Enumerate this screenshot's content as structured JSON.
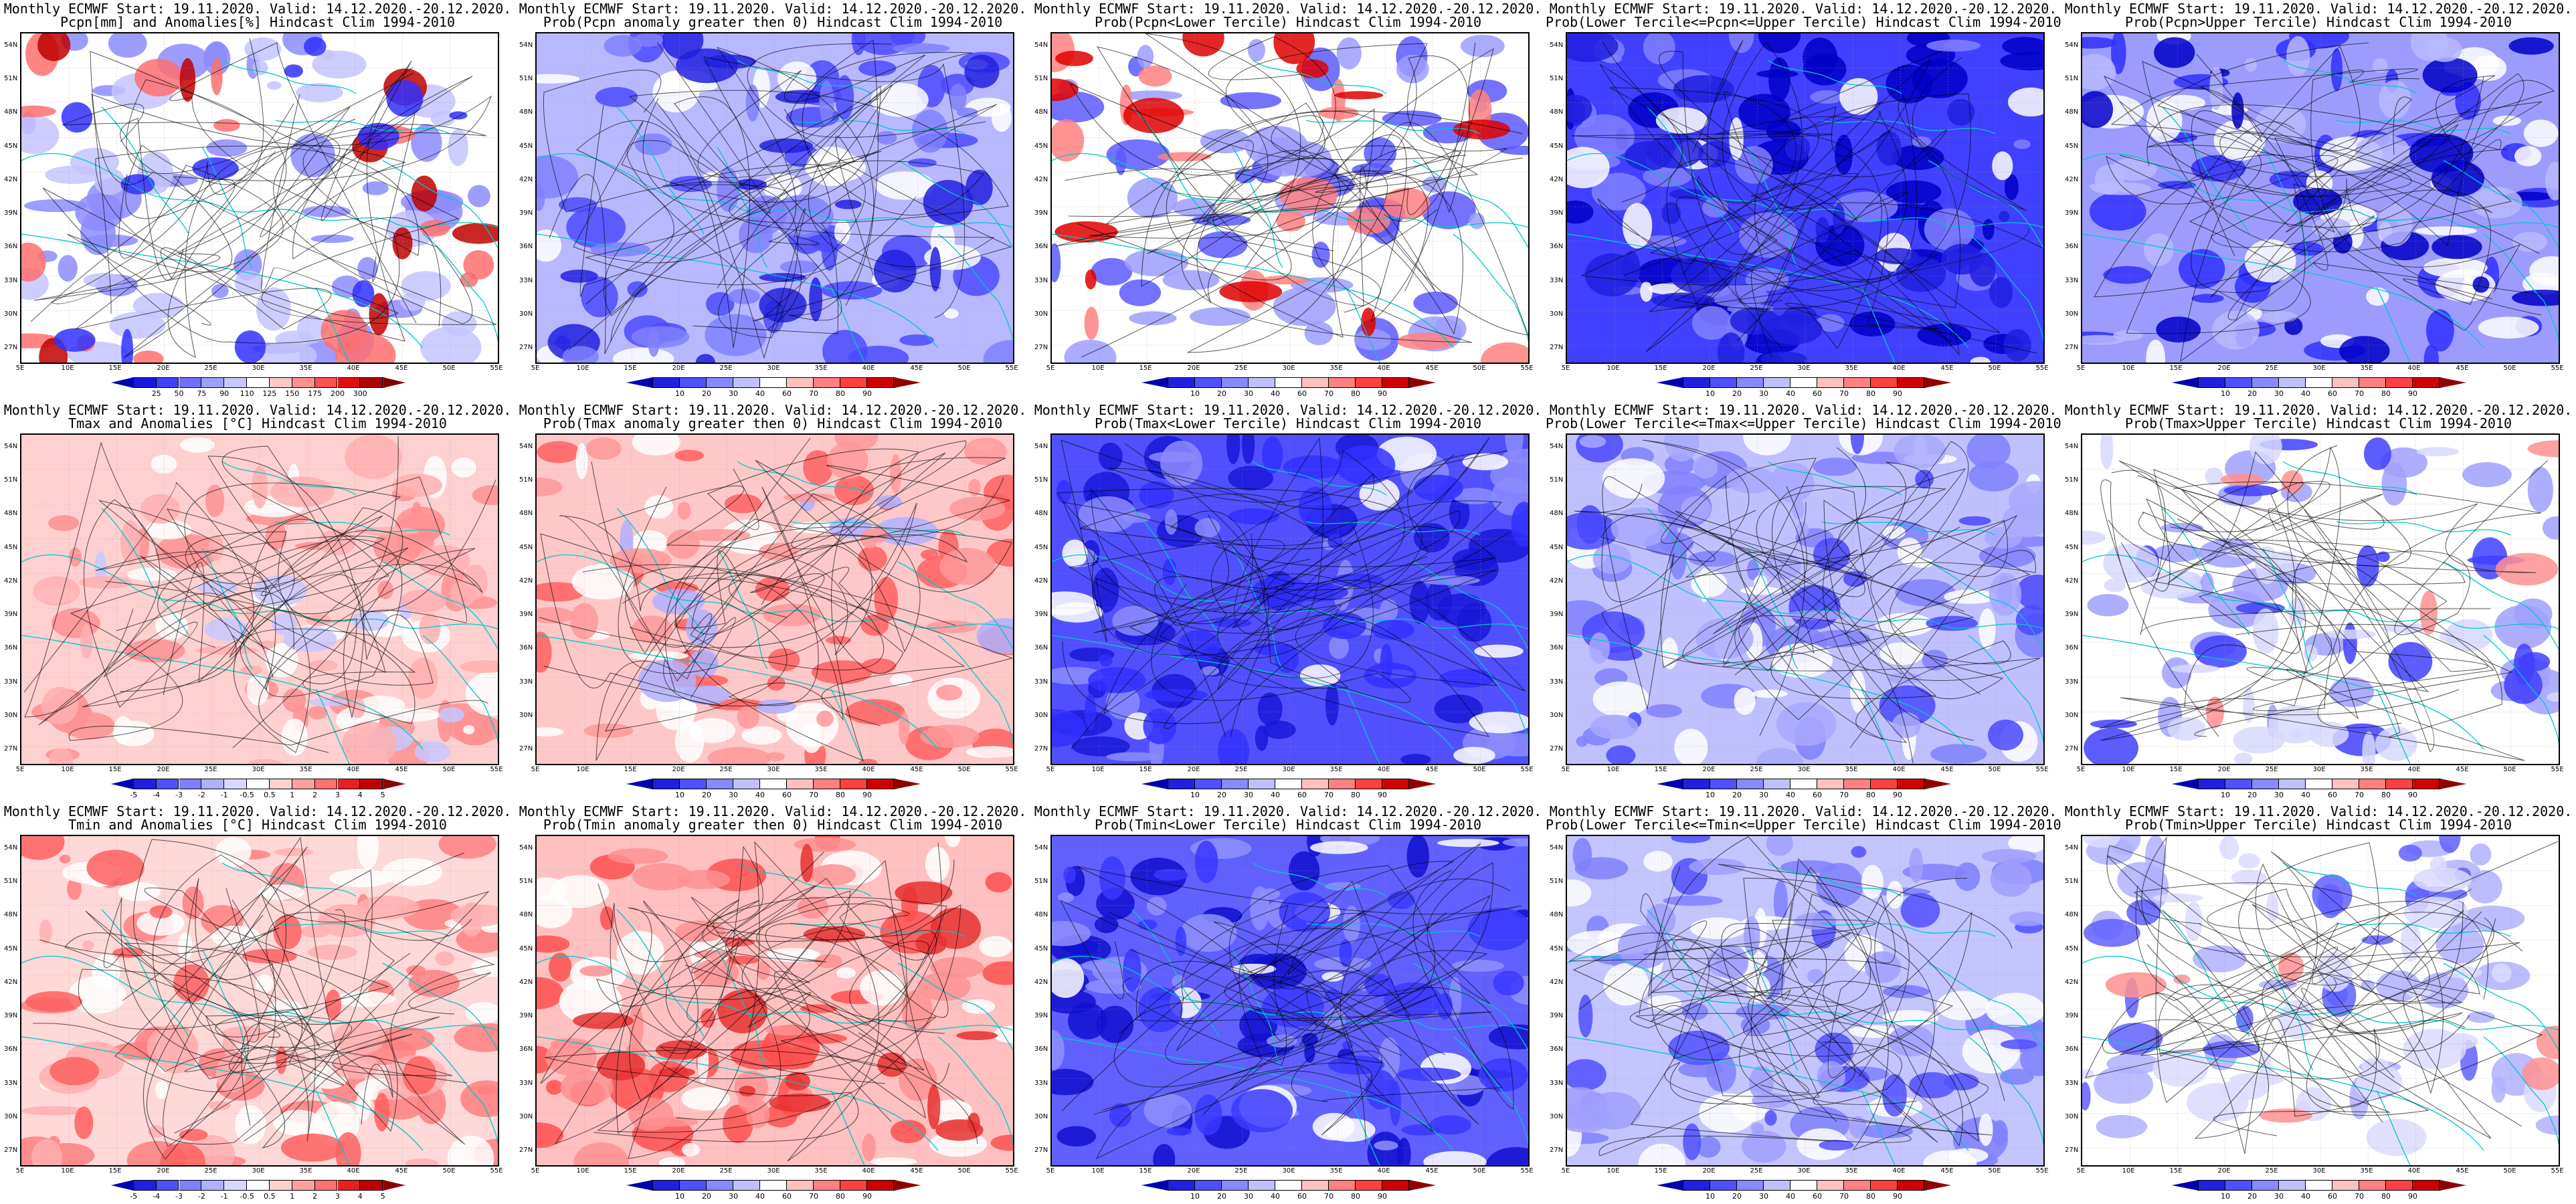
{
  "common": {
    "line1": "Monthly ECMWF Start: 19.11.2020. Valid: 14.12.2020.-20.12.2020."
  },
  "panels": [
    {
      "row": 0,
      "col": 0,
      "line2": "Pcpn[mm] and Anomalies[%] Hindcast Clim 1994-2010",
      "cbar": "precip_anom",
      "base": "#ffffff",
      "blobs": [
        [
          "#8c8cff",
          0.6
        ],
        [
          "#c4c4ff",
          0.5
        ],
        [
          "#ff7070",
          0.25
        ],
        [
          "#c00000",
          0.15
        ],
        [
          "#3030ff",
          0.2
        ]
      ]
    },
    {
      "row": 0,
      "col": 1,
      "line2": "Prob(Pcpn anomaly greater then 0) Hindcast Clim 1994-2010",
      "cbar": "prob",
      "base": "#b8b8ff",
      "blobs": [
        [
          "#4a4aff",
          0.6
        ],
        [
          "#ffffff",
          0.4
        ],
        [
          "#2020e0",
          0.3
        ],
        [
          "#8080ff",
          0.4
        ]
      ]
    },
    {
      "row": 0,
      "col": 2,
      "line2": "Prob(Pcpn<Lower Tercile) Hindcast Clim 1994-2010",
      "cbar": "prob",
      "base": "#ffffff",
      "blobs": [
        [
          "#5a5aff",
          0.5
        ],
        [
          "#9c9cff",
          0.5
        ],
        [
          "#ff8080",
          0.3
        ],
        [
          "#e00000",
          0.2
        ]
      ]
    },
    {
      "row": 0,
      "col": 3,
      "line2": "Prob(Lower Tercile<=Pcpn<=Upper Tercile) Hindcast Clim 1994-2010",
      "cbar": "prob",
      "base": "#4040ff",
      "blobs": [
        [
          "#0000c8",
          0.6
        ],
        [
          "#8080ff",
          0.5
        ],
        [
          "#ffffff",
          0.2
        ],
        [
          "#2020e0",
          0.5
        ]
      ]
    },
    {
      "row": 0,
      "col": 4,
      "line2": "Prob(Pcpn>Upper Tercile) Hindcast Clim 1994-2010",
      "cbar": "prob",
      "base": "#9c9cff",
      "blobs": [
        [
          "#3030ff",
          0.6
        ],
        [
          "#ffffff",
          0.5
        ],
        [
          "#0000c8",
          0.3
        ],
        [
          "#b8b8ff",
          0.4
        ]
      ]
    },
    {
      "row": 1,
      "col": 0,
      "line2": "Tmax and Anomalies [°C] Hindcast Clim 1994-2010",
      "cbar": "temp_anom",
      "base": "#ffd0d0",
      "blobs": [
        [
          "#ff9090",
          0.6
        ],
        [
          "#ffffff",
          0.4
        ],
        [
          "#c8c8ff",
          0.2
        ],
        [
          "#ffb0b0",
          0.5
        ]
      ]
    },
    {
      "row": 1,
      "col": 1,
      "line2": "Prob(Tmax anomaly greater then 0) Hindcast Clim 1994-2010",
      "cbar": "prob",
      "base": "#ffc8c8",
      "blobs": [
        [
          "#ff6060",
          0.6
        ],
        [
          "#ffffff",
          0.4
        ],
        [
          "#b0b0ff",
          0.2
        ],
        [
          "#ff9898",
          0.5
        ]
      ]
    },
    {
      "row": 1,
      "col": 2,
      "line2": "Prob(Tmax<Lower Tercile) Hindcast Clim 1994-2010",
      "cbar": "prob",
      "base": "#5050ff",
      "blobs": [
        [
          "#1818d8",
          0.6
        ],
        [
          "#8c8cff",
          0.5
        ],
        [
          "#ffffff",
          0.2
        ],
        [
          "#3030ff",
          0.5
        ]
      ]
    },
    {
      "row": 1,
      "col": 3,
      "line2": "Prob(Lower Tercile<=Tmax<=Upper Tercile) Hindcast Clim 1994-2010",
      "cbar": "prob",
      "base": "#c0c0ff",
      "blobs": [
        [
          "#8080ff",
          0.6
        ],
        [
          "#ffffff",
          0.5
        ],
        [
          "#4848ff",
          0.3
        ],
        [
          "#a8a8ff",
          0.4
        ]
      ]
    },
    {
      "row": 1,
      "col": 4,
      "line2": "Prob(Tmax>Upper Tercile) Hindcast Clim 1994-2010",
      "cbar": "prob",
      "base": "#ffffff",
      "blobs": [
        [
          "#a0a0ff",
          0.5
        ],
        [
          "#4040ff",
          0.3
        ],
        [
          "#d8d8ff",
          0.5
        ],
        [
          "#ff9090",
          0.1
        ]
      ]
    },
    {
      "row": 2,
      "col": 0,
      "line2": "Tmin and Anomalies [°C] Hindcast Clim 1994-2010",
      "cbar": "temp_anom",
      "base": "#ffd8d8",
      "blobs": [
        [
          "#ff8080",
          0.6
        ],
        [
          "#ffffff",
          0.5
        ],
        [
          "#ffb0b0",
          0.5
        ],
        [
          "#ff6060",
          0.3
        ]
      ]
    },
    {
      "row": 2,
      "col": 1,
      "line2": "Prob(Tmin anomaly greater then 0) Hindcast Clim 1994-2010",
      "cbar": "prob",
      "base": "#ffc0c0",
      "blobs": [
        [
          "#ff5050",
          0.6
        ],
        [
          "#ffffff",
          0.4
        ],
        [
          "#ff9090",
          0.5
        ],
        [
          "#e83030",
          0.3
        ]
      ]
    },
    {
      "row": 2,
      "col": 2,
      "line2": "Prob(Tmin<Lower Tercile) Hindcast Clim 1994-2010",
      "cbar": "prob",
      "base": "#6060ff",
      "blobs": [
        [
          "#1010d0",
          0.6
        ],
        [
          "#9090ff",
          0.5
        ],
        [
          "#ffffff",
          0.2
        ],
        [
          "#3838ff",
          0.5
        ]
      ]
    },
    {
      "row": 2,
      "col": 3,
      "line2": "Prob(Lower Tercile<=Tmin<=Upper Tercile) Hindcast Clim 1994-2010",
      "cbar": "prob",
      "base": "#c4c4ff",
      "blobs": [
        [
          "#8080ff",
          0.6
        ],
        [
          "#ffffff",
          0.5
        ],
        [
          "#5050ff",
          0.3
        ],
        [
          "#a0a0ff",
          0.4
        ]
      ]
    },
    {
      "row": 2,
      "col": 4,
      "line2": "Prob(Tmin>Upper Tercile) Hindcast Clim 1994-2010",
      "cbar": "prob",
      "base": "#ffffff",
      "blobs": [
        [
          "#b0b0ff",
          0.5
        ],
        [
          "#6060ff",
          0.3
        ],
        [
          "#dcdcff",
          0.5
        ],
        [
          "#ff9090",
          0.1
        ]
      ]
    }
  ],
  "colorbars": {
    "precip_anom": {
      "colors": [
        "#0000b0",
        "#1818e0",
        "#4040ff",
        "#7070ff",
        "#a0a0ff",
        "#c8c8ff",
        "#ffffff",
        "#ffc8c8",
        "#ff9090",
        "#ff5050",
        "#e01010",
        "#b00000",
        "#800000"
      ],
      "labels": [
        "25",
        "50",
        "75",
        "90",
        "110",
        "125",
        "150",
        "175",
        "200",
        "300"
      ]
    },
    "temp_anom": {
      "colors": [
        "#0000b0",
        "#2020e0",
        "#5050ff",
        "#8080ff",
        "#b0b0ff",
        "#d8d8ff",
        "#ffffff",
        "#ffd0d0",
        "#ffa0a0",
        "#ff7070",
        "#e82020",
        "#c00000",
        "#900000"
      ],
      "labels": [
        "-5",
        "-4",
        "-3",
        "-2",
        "-1",
        "-0.5",
        "0.5",
        "1",
        "2",
        "3",
        "4",
        "5"
      ]
    },
    "prob": {
      "colors": [
        "#0000b0",
        "#2020e0",
        "#5050ff",
        "#8888ff",
        "#c0c0ff",
        "#ffffff",
        "#ffc0c0",
        "#ff8080",
        "#ff4040",
        "#d00000",
        "#900000"
      ],
      "labels": [
        "10",
        "20",
        "30",
        "40",
        "60",
        "70",
        "80",
        "90"
      ]
    }
  },
  "axes": {
    "lat_labels": [
      "54N",
      "51N",
      "48N",
      "45N",
      "42N",
      "39N",
      "36N",
      "33N",
      "30N",
      "27N"
    ],
    "lon_labels": [
      "5E",
      "10E",
      "15E",
      "20E",
      "25E",
      "30E",
      "35E",
      "40E",
      "45E",
      "50E",
      "55E"
    ]
  }
}
